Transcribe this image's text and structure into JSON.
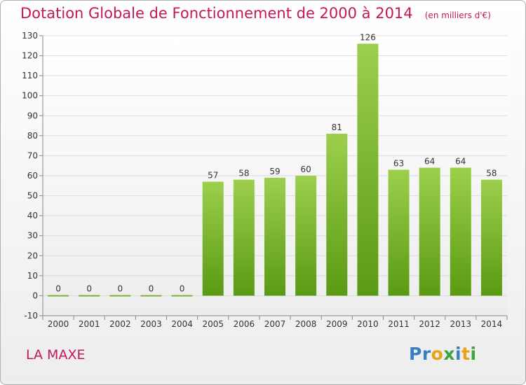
{
  "title": "Dotation Globale de Fonctionnement de 2000 à 2014",
  "unit_note": "(en milliers d'€)",
  "commune": "LA MAXE",
  "logo": {
    "text": "Proxiti",
    "letters": [
      {
        "ch": "P",
        "color": "#3a7fc1"
      },
      {
        "ch": "r",
        "color": "#3a7fc1"
      },
      {
        "ch": "o",
        "color": "#e8a317"
      },
      {
        "ch": "x",
        "color": "#3aa53a"
      },
      {
        "ch": "i",
        "color": "#3a7fc1"
      },
      {
        "ch": "t",
        "color": "#e8a317"
      },
      {
        "ch": "i",
        "color": "#3aa53a"
      }
    ]
  },
  "colors": {
    "bar_top": "#9ccf4c",
    "bar_bottom": "#5a9a12",
    "title": "#c2185b",
    "grid": "#dcdcdc"
  },
  "chart_data": {
    "type": "bar",
    "categories": [
      "2000",
      "2001",
      "2002",
      "2003",
      "2004",
      "2005",
      "2006",
      "2007",
      "2008",
      "2009",
      "2010",
      "2011",
      "2012",
      "2013",
      "2014"
    ],
    "values": [
      0,
      0,
      0,
      0,
      0,
      57,
      58,
      59,
      60,
      81,
      126,
      63,
      64,
      64,
      58
    ],
    "data_labels": [
      "0",
      "0",
      "0",
      "0",
      "0",
      "57",
      "58",
      "59",
      "60",
      "81",
      "126",
      "63",
      "64",
      "64",
      "58"
    ],
    "ylim": [
      -10,
      130
    ],
    "yticks": [
      -10,
      0,
      10,
      20,
      30,
      40,
      50,
      60,
      70,
      80,
      90,
      100,
      110,
      120,
      130
    ],
    "ytick_labels": [
      "-10",
      "0",
      "10",
      "20",
      "30",
      "40",
      "50",
      "60",
      "70",
      "80",
      "90",
      "100",
      "110",
      "120",
      "130"
    ],
    "grid": true,
    "legend": false
  }
}
